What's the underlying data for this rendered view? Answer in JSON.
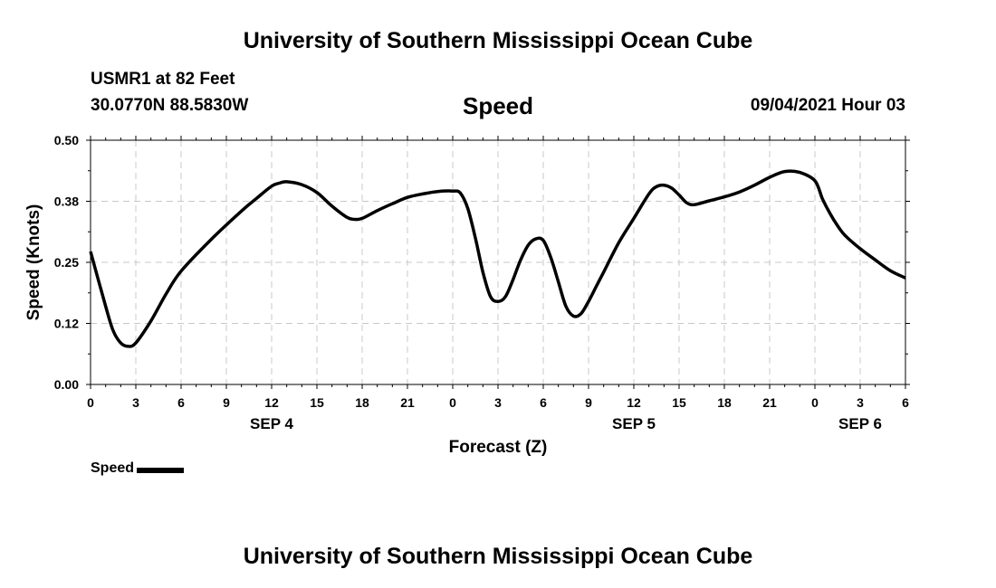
{
  "header": {
    "title_top": "University of Southern Mississippi Ocean Cube",
    "title_bottom": "University of Southern Mississippi Ocean Cube",
    "station": "USMR1 at 82 Feet",
    "coords": "30.0770N  88.5830W",
    "datetime": "09/04/2021 Hour 03"
  },
  "legend": {
    "label": "Speed",
    "color": "#000000"
  },
  "colors": {
    "line": "#000000",
    "grid": "#c8c8c8",
    "axis": "#000000"
  },
  "chart_data": {
    "type": "line",
    "title": "Speed",
    "xlabel": "Forecast (Z)",
    "ylabel": "Speed (Knots)",
    "xlim": [
      0,
      54
    ],
    "ylim": [
      0,
      0.5
    ],
    "grid": true,
    "y_ticks": [
      0,
      0.125,
      0.25,
      0.375,
      0.5
    ],
    "y_tick_labels": [
      "0.00",
      "0.12",
      "0.25",
      "0.38",
      "0.50"
    ],
    "x_ticks": [
      0,
      3,
      6,
      9,
      12,
      15,
      18,
      21,
      24,
      27,
      30,
      33,
      36,
      39,
      42,
      45,
      48,
      51,
      54
    ],
    "x_tick_labels": [
      "0",
      "3",
      "6",
      "9",
      "12",
      "15",
      "18",
      "21",
      "0",
      "3",
      "6",
      "9",
      "12",
      "15",
      "18",
      "21",
      "0",
      "3",
      "6"
    ],
    "date_labels": [
      {
        "x": 12,
        "label": "SEP 4"
      },
      {
        "x": 36,
        "label": "SEP 5"
      },
      {
        "x": 51,
        "label": "SEP 6"
      }
    ],
    "series": [
      {
        "name": "Speed",
        "x": [
          0,
          1,
          1.5,
          2,
          2.5,
          3,
          4,
          5,
          6,
          8,
          10,
          11,
          12,
          12.5,
          13,
          14,
          15,
          16,
          17,
          17.5,
          18,
          19,
          20,
          21,
          22,
          23,
          24,
          24.5,
          25,
          25.5,
          26,
          26.5,
          27,
          27.5,
          28,
          28.5,
          29,
          29.5,
          30,
          30.5,
          31,
          31.5,
          32,
          32.5,
          33,
          33.5,
          34,
          35,
          36,
          37,
          37.5,
          38,
          38.5,
          39,
          39.5,
          40,
          41,
          42,
          43,
          44,
          45,
          46,
          47,
          48,
          48.5,
          49,
          49.5,
          50,
          51,
          52,
          53,
          54
        ],
        "y": [
          0.272,
          0.16,
          0.11,
          0.085,
          0.078,
          0.085,
          0.13,
          0.185,
          0.232,
          0.297,
          0.355,
          0.381,
          0.406,
          0.412,
          0.415,
          0.409,
          0.393,
          0.365,
          0.342,
          0.338,
          0.34,
          0.356,
          0.37,
          0.383,
          0.39,
          0.395,
          0.396,
          0.392,
          0.36,
          0.3,
          0.23,
          0.18,
          0.17,
          0.18,
          0.215,
          0.255,
          0.285,
          0.298,
          0.295,
          0.26,
          0.21,
          0.16,
          0.14,
          0.145,
          0.17,
          0.2,
          0.23,
          0.29,
          0.34,
          0.39,
          0.405,
          0.408,
          0.402,
          0.388,
          0.372,
          0.368,
          0.376,
          0.384,
          0.394,
          0.408,
          0.424,
          0.436,
          0.434,
          0.417,
          0.38,
          0.35,
          0.325,
          0.305,
          0.278,
          0.255,
          0.233,
          0.218
        ]
      }
    ]
  }
}
